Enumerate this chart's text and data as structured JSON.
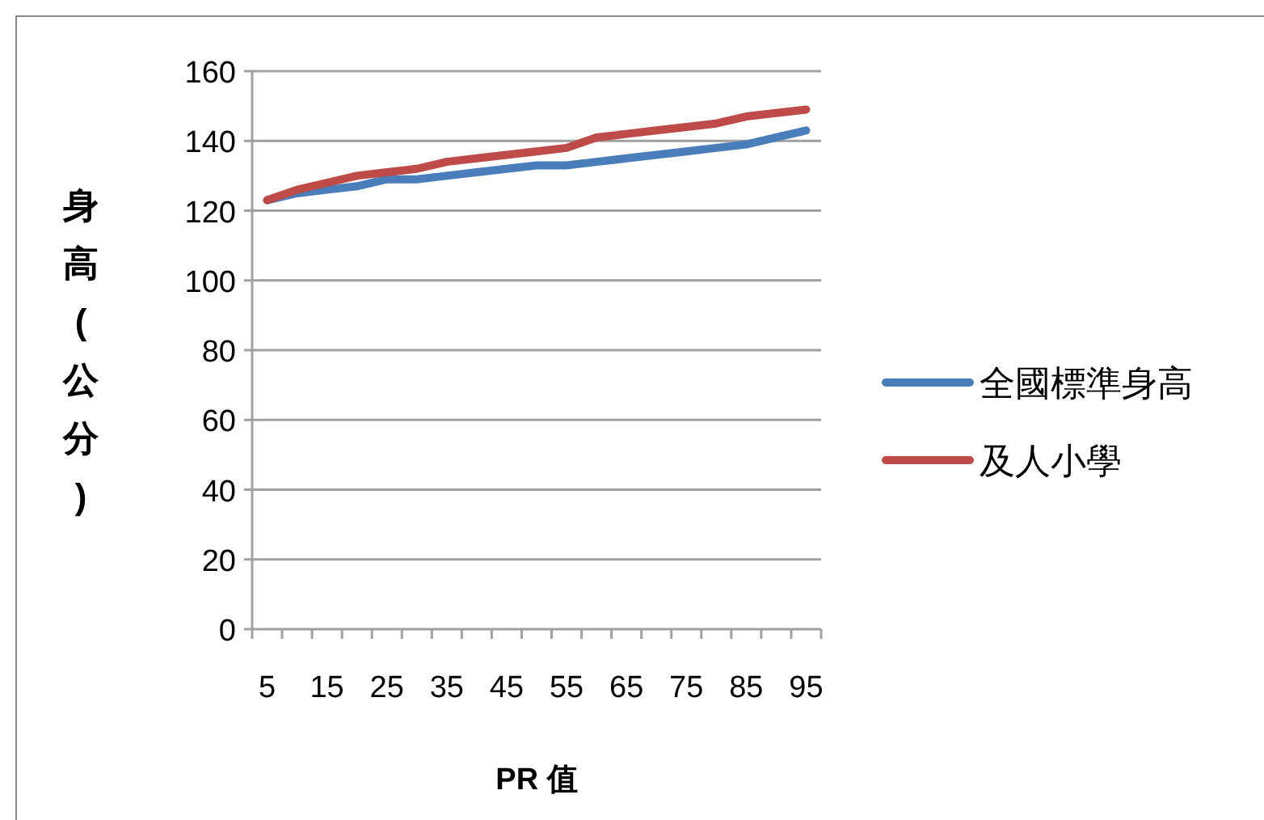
{
  "chart_data": {
    "type": "line",
    "xlabel": "PR 值",
    "ylabel": "身高(公分)",
    "categories": [
      "5",
      null,
      "15",
      null,
      "25",
      null,
      "35",
      null,
      "45",
      null,
      "55",
      null,
      "65",
      null,
      "75",
      null,
      "85",
      null,
      "95"
    ],
    "series": [
      {
        "name": "全國標準身高",
        "color": "#4a7ebb",
        "values": [
          123,
          125,
          126,
          127,
          129,
          129,
          130,
          131,
          132,
          133,
          133,
          134,
          135,
          136,
          137,
          138,
          139,
          141,
          143
        ]
      },
      {
        "name": "及人小學",
        "color": "#be4b48",
        "values": [
          123,
          126,
          128,
          130,
          131,
          132,
          134,
          135,
          136,
          137,
          138,
          141,
          142,
          143,
          144,
          145,
          147,
          148,
          149
        ]
      }
    ],
    "ylim": [
      0,
      160
    ],
    "yticks": [
      0,
      20,
      40,
      60,
      80,
      100,
      120,
      140,
      160
    ],
    "grid": "y",
    "legend": "right"
  }
}
